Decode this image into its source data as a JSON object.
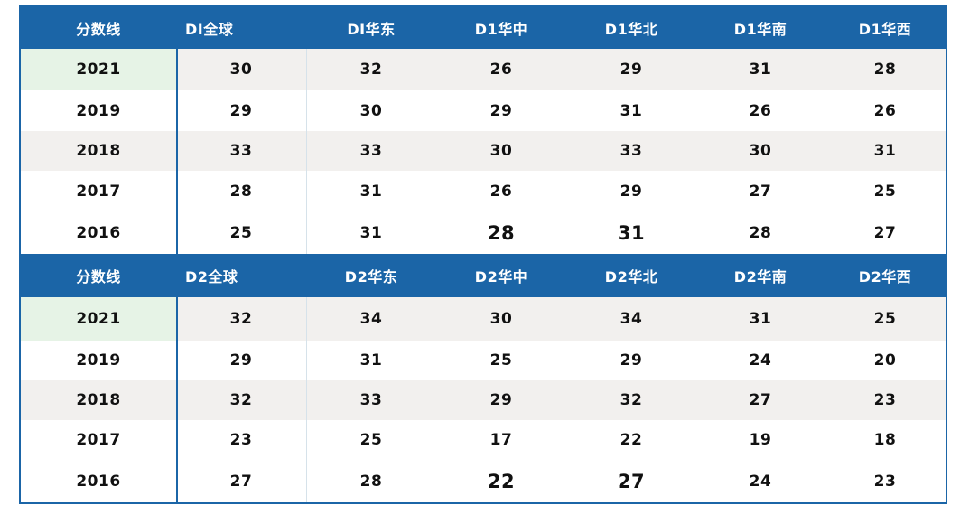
{
  "tables": [
    {
      "headers": [
        "分数线",
        "DI全球",
        "DI华东",
        "D1华中",
        "D1华北",
        "D1华南",
        "D1华西"
      ],
      "rows": [
        {
          "year": "2021",
          "values": [
            "30",
            "32",
            "26",
            "29",
            "31",
            "28"
          ]
        },
        {
          "year": "2019",
          "values": [
            "29",
            "30",
            "29",
            "31",
            "26",
            "26"
          ]
        },
        {
          "year": "2018",
          "values": [
            "33",
            "33",
            "30",
            "33",
            "30",
            "31"
          ]
        },
        {
          "year": "2017",
          "values": [
            "28",
            "31",
            "26",
            "29",
            "27",
            "25"
          ]
        },
        {
          "year": "2016",
          "values": [
            "25",
            "31",
            "28",
            "31",
            "28",
            "27"
          ]
        }
      ]
    },
    {
      "headers": [
        "分数线",
        "D2全球",
        "D2华东",
        "D2华中",
        "D2华北",
        "D2华南",
        "D2华西"
      ],
      "rows": [
        {
          "year": "2021",
          "values": [
            "32",
            "34",
            "30",
            "34",
            "31",
            "25"
          ]
        },
        {
          "year": "2019",
          "values": [
            "29",
            "31",
            "25",
            "29",
            "24",
            "20"
          ]
        },
        {
          "year": "2018",
          "values": [
            "32",
            "33",
            "29",
            "32",
            "27",
            "23"
          ]
        },
        {
          "year": "2017",
          "values": [
            "23",
            "25",
            "17",
            "22",
            "19",
            "18"
          ]
        },
        {
          "year": "2016",
          "values": [
            "27",
            "28",
            "22",
            "27",
            "24",
            "23"
          ]
        }
      ]
    }
  ],
  "colors": {
    "header": "#1b65a7",
    "stripe": "#f2f0ee",
    "year_highlight": "#e6f3e6"
  }
}
